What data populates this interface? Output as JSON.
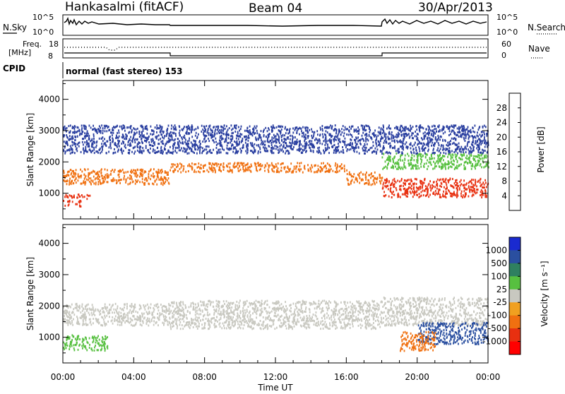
{
  "header": {
    "station": "Hankasalmi (fitACF)",
    "beam": "Beam 04",
    "date": "30/Apr/2013"
  },
  "top_panels": {
    "nsky_label": "N.Sky",
    "nsky_ticks": [
      "10^5",
      "10^0"
    ],
    "nsearch_label": "N.Search",
    "nsearch_ticks": [
      "10^5",
      "10^0"
    ],
    "freq_label": "Freq.",
    "freq_unit": "[MHz]",
    "freq_ticks": [
      "18",
      "8"
    ],
    "nave_label": "Nave",
    "nave_ticks": [
      "60",
      "0"
    ],
    "cpid_label": "CPID",
    "cpid_text": "normal (fast stereo) 153"
  },
  "chart_data": [
    {
      "type": "heatmap",
      "name": "power",
      "ylabel": "Slant Range [km]",
      "xlabel": "",
      "yticks": [
        "1000",
        "2000",
        "3000",
        "4000"
      ],
      "yticks_values": [
        1000,
        2000,
        3000,
        4000
      ],
      "ylim": [
        180,
        4600
      ],
      "xlim": [
        0,
        24
      ],
      "colorbar_label": "Power [dB]",
      "colorbar_ticks": [
        "4",
        "8",
        "12",
        "16",
        "20",
        "24",
        "28"
      ],
      "colorbar_values": [
        4,
        8,
        12,
        16,
        20,
        24,
        28
      ],
      "colors": [
        "#1a1aff",
        "#2a3fa0",
        "#2f7f4f",
        "#57c040",
        "#f0c020",
        "#f07010",
        "#e83010",
        "#ff0000"
      ],
      "scatter_ranges_km": [
        {
          "t0": 0,
          "t1": 1,
          "r0": 600,
          "r1": 800,
          "color": "#e83010"
        },
        {
          "t0": 0,
          "t1": 1.5,
          "r0": 850,
          "r1": 1000,
          "color": "#e83010"
        },
        {
          "t0": 0,
          "t1": 6,
          "r0": 1300,
          "r1": 1800,
          "color": "#f07010"
        },
        {
          "t0": 6,
          "t1": 16,
          "r0": 1700,
          "r1": 2000,
          "color": "#f07010"
        },
        {
          "t0": 16,
          "t1": 18,
          "r0": 1300,
          "r1": 1700,
          "color": "#f07010"
        },
        {
          "t0": 18,
          "t1": 24,
          "r0": 900,
          "r1": 1500,
          "color": "#e83010"
        },
        {
          "t0": 18,
          "t1": 24,
          "r0": 1800,
          "r1": 2300,
          "color": "#57c040"
        },
        {
          "t0": 0,
          "t1": 24,
          "r0": 2300,
          "r1": 3200,
          "color": "#2a3fa0"
        }
      ]
    },
    {
      "type": "heatmap",
      "name": "velocity",
      "ylabel": "Slant Range [km]",
      "xlabel": "Time UT",
      "yticks": [
        "1000",
        "2000",
        "3000",
        "4000"
      ],
      "yticks_values": [
        1000,
        2000,
        3000,
        4000
      ],
      "ylim": [
        180,
        4600
      ],
      "xlim": [
        0,
        24
      ],
      "xticks": [
        "00:00",
        "04:00",
        "08:00",
        "12:00",
        "16:00",
        "20:00",
        "00:00"
      ],
      "xticks_values": [
        0,
        4,
        8,
        12,
        16,
        20,
        24
      ],
      "colorbar_label": "Velocity [m s⁻¹]",
      "colorbar_ticks": [
        "1000",
        "500",
        "100",
        "25",
        "-25",
        "-100",
        "-500",
        "-1000"
      ],
      "colorbar_values": [
        1000,
        500,
        100,
        25,
        -25,
        -100,
        -500,
        -1000
      ],
      "colors": [
        "#1a2ad0",
        "#2a4fa0",
        "#2f8060",
        "#57c040",
        "#c8c8c0",
        "#f0a020",
        "#f07010",
        "#e83010",
        "#ff0000"
      ],
      "scatter_ranges_km": [
        {
          "t0": 0,
          "t1": 6,
          "r0": 1400,
          "r1": 2100,
          "color": "#c8c8c0"
        },
        {
          "t0": 6,
          "t1": 18,
          "r0": 1300,
          "r1": 2200,
          "color": "#c8c8c0"
        },
        {
          "t0": 18,
          "t1": 24,
          "r0": 1400,
          "r1": 2300,
          "color": "#c8c8c0"
        },
        {
          "t0": 0,
          "t1": 2.5,
          "r0": 600,
          "r1": 1100,
          "color": "#57c040"
        },
        {
          "t0": 20,
          "t1": 24,
          "r0": 800,
          "r1": 1500,
          "color": "#2a4fa0"
        },
        {
          "t0": 19,
          "t1": 21,
          "r0": 600,
          "r1": 1200,
          "color": "#f07010"
        }
      ]
    }
  ],
  "colors": {
    "background": "#ffffff",
    "axis": "#000000"
  }
}
